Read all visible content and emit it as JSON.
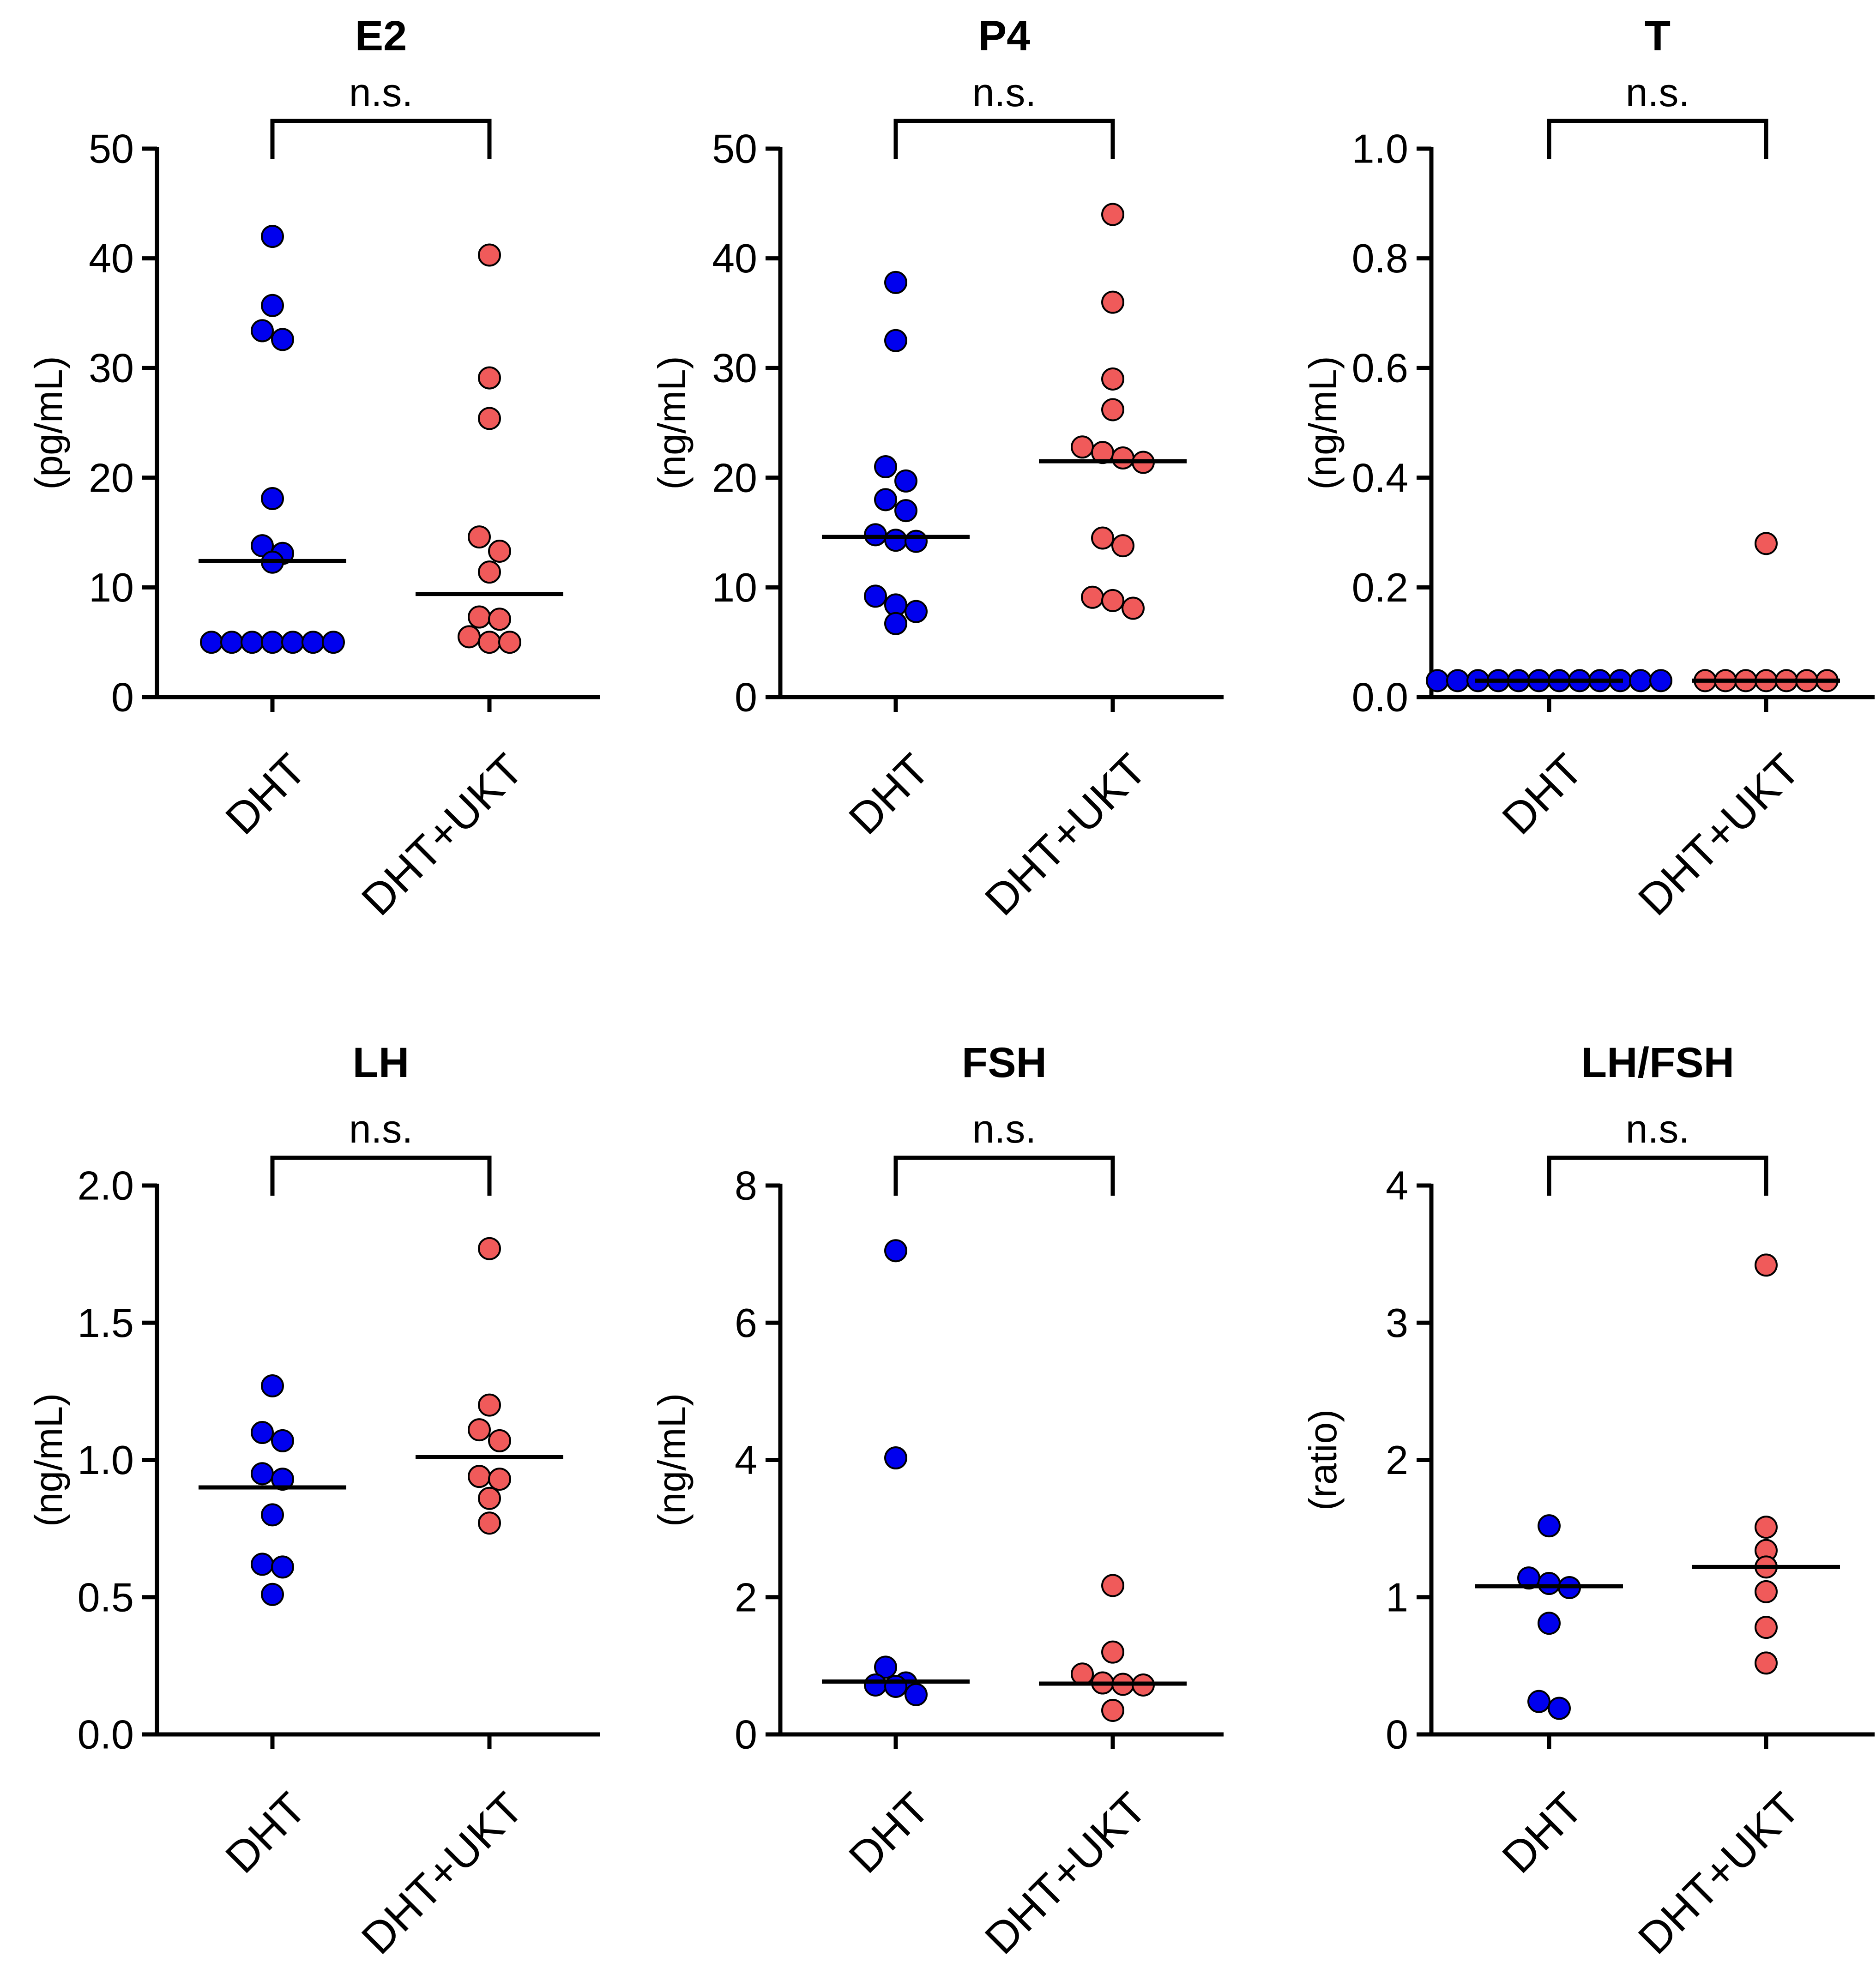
{
  "colors": {
    "DHT": "#0000ee",
    "DHT+UKT": "#f05a5a",
    "axis": "#000000"
  },
  "chart_data": [
    {
      "type": "scatter",
      "title": "E2",
      "ylabel": "(pg/mL)",
      "ylim": [
        0,
        50
      ],
      "yticks": [
        "0",
        "10",
        "20",
        "30",
        "40",
        "50"
      ],
      "categories": [
        "DHT",
        "DHT+UKT"
      ],
      "significance": "n.s.",
      "series": [
        {
          "name": "DHT",
          "values": [
            42,
            35.7,
            33.4,
            32.6,
            18.1,
            13.1,
            13.8,
            12.3,
            5,
            5,
            5,
            5,
            5,
            5,
            5
          ],
          "median": 12.4
        },
        {
          "name": "DHT+UKT",
          "values": [
            40.3,
            29.1,
            25.4,
            14.6,
            13.3,
            11.4,
            7.1,
            7.3,
            5,
            5,
            5.5
          ],
          "median": 9.4
        }
      ]
    },
    {
      "type": "scatter",
      "title": "P4",
      "ylabel": "(ng/mL)",
      "ylim": [
        0,
        50
      ],
      "yticks": [
        "0",
        "10",
        "20",
        "30",
        "40",
        "50"
      ],
      "categories": [
        "DHT",
        "DHT+UKT"
      ],
      "significance": "n.s.",
      "series": [
        {
          "name": "DHT",
          "values": [
            37.8,
            32.5,
            21,
            19.7,
            18,
            17,
            14.8,
            14.2,
            14.3,
            9.2,
            8.4,
            7.8,
            6.7
          ],
          "median": 14.6
        },
        {
          "name": "DHT+UKT",
          "values": [
            44,
            36,
            29,
            26.2,
            22.8,
            22.3,
            21.4,
            21.8,
            14.5,
            13.8,
            9.1,
            8.8,
            8.1
          ],
          "median": 21.5
        }
      ]
    },
    {
      "type": "scatter",
      "title": "T",
      "ylabel": "(ng/mL)",
      "ylim": [
        0,
        1.0
      ],
      "yticks": [
        "0.0",
        "0.2",
        "0.4",
        "0.6",
        "0.8",
        "1.0"
      ],
      "categories": [
        "DHT",
        "DHT+UKT"
      ],
      "significance": "n.s.",
      "series": [
        {
          "name": "DHT",
          "values": [
            0.03,
            0.03,
            0.03,
            0.03,
            0.03,
            0.03,
            0.03,
            0.03,
            0.03,
            0.03,
            0.03,
            0.03
          ],
          "median": 0.03
        },
        {
          "name": "DHT+UKT",
          "values": [
            0.28,
            0.03,
            0.03,
            0.03,
            0.03,
            0.03,
            0.03,
            0.03
          ],
          "median": 0.03
        }
      ]
    },
    {
      "type": "scatter",
      "title": "LH",
      "ylabel": "(ng/mL)",
      "ylim": [
        0,
        2.0
      ],
      "yticks": [
        "0.0",
        "0.5",
        "1.0",
        "1.5",
        "2.0"
      ],
      "categories": [
        "DHT",
        "DHT+UKT"
      ],
      "significance": "n.s.",
      "series": [
        {
          "name": "DHT",
          "values": [
            1.27,
            1.1,
            1.07,
            0.95,
            0.93,
            0.8,
            0.62,
            0.61,
            0.51
          ],
          "median": 0.9
        },
        {
          "name": "DHT+UKT",
          "values": [
            1.77,
            1.2,
            1.11,
            1.07,
            0.93,
            0.94,
            0.86,
            0.77
          ],
          "median": 1.01
        }
      ]
    },
    {
      "type": "scatter",
      "title": "FSH",
      "ylabel": "(ng/mL)",
      "ylim": [
        0,
        8
      ],
      "yticks": [
        "0",
        "2",
        "4",
        "6",
        "8"
      ],
      "categories": [
        "DHT",
        "DHT+UKT"
      ],
      "significance": "n.s.",
      "series": [
        {
          "name": "DHT",
          "values": [
            7.05,
            4.03,
            0.98,
            0.75,
            0.72,
            0.58,
            0.7
          ],
          "median": 0.77
        },
        {
          "name": "DHT+UKT",
          "values": [
            2.17,
            1.2,
            0.88,
            0.75,
            0.73,
            0.72,
            0.35
          ],
          "median": 0.74
        }
      ]
    },
    {
      "type": "scatter",
      "title": "LH/FSH",
      "ylabel": "(ratio)",
      "ylim": [
        0,
        4
      ],
      "yticks": [
        "0",
        "1",
        "2",
        "3",
        "4"
      ],
      "categories": [
        "DHT",
        "DHT+UKT"
      ],
      "significance": "n.s.",
      "series": [
        {
          "name": "DHT",
          "values": [
            1.52,
            1.14,
            1.1,
            1.07,
            0.81,
            0.24,
            0.19
          ],
          "median": 1.08
        },
        {
          "name": "DHT+UKT",
          "values": [
            3.42,
            1.51,
            1.34,
            1.22,
            1.04,
            0.78,
            0.52
          ],
          "median": 1.22
        }
      ]
    }
  ]
}
